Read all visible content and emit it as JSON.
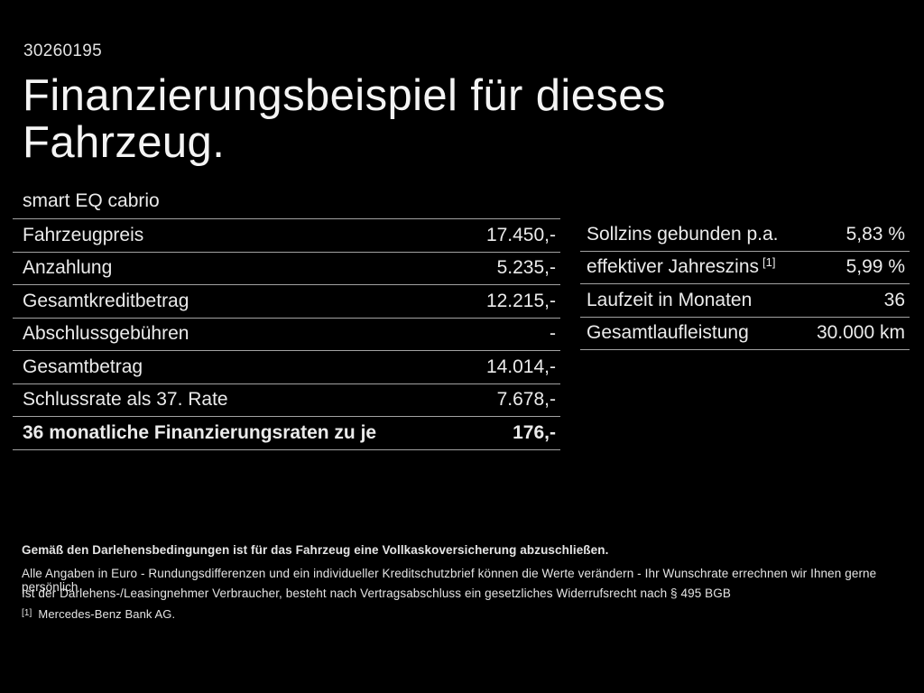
{
  "page": {
    "background_color": "#000000",
    "text_color": "#ececec",
    "divider_color": "#a2a2a2"
  },
  "header": {
    "document_id": "30260195",
    "title_line1": "Finanzierungsbeispiel für dieses",
    "title_line2": "Fahrzeug.",
    "vehicle_model": "smart EQ cabrio"
  },
  "financing_table": {
    "rows": [
      {
        "label": "Fahrzeugpreis",
        "value": "17.450,-"
      },
      {
        "label": "Anzahlung",
        "value": "5.235,-"
      },
      {
        "label": "Gesamtkreditbetrag",
        "value": "12.215,-"
      },
      {
        "label": "Abschlussgebühren",
        "value": "-"
      },
      {
        "label": "Gesamtbetrag",
        "value": "14.014,-"
      },
      {
        "label": "Schlussrate als 37. Rate",
        "value": "7.678,-"
      },
      {
        "label": "36 monatliche Finanzierungsraten zu je",
        "value": "176,-"
      }
    ]
  },
  "conditions_table": {
    "rows": [
      {
        "label": "Sollzins gebunden p.a.",
        "sup": "",
        "value": "5,83 %"
      },
      {
        "label": "effektiver Jahreszins",
        "sup": "[1]",
        "value": "5,99 %"
      },
      {
        "label": "Laufzeit in Monaten",
        "sup": "",
        "value": "36"
      },
      {
        "label": "Gesamtlaufleistung",
        "sup": "",
        "value": "30.000 km"
      }
    ]
  },
  "footnotes": {
    "insurance_note": "Gemäß den Darlehensbedingungen ist für das Fahrzeug eine Vollkaskoversicherung abzuschließen.",
    "values_note": "Alle Angaben in Euro - Rundungsdifferenzen und ein individueller Kreditschutzbrief können die Werte verändern - Ihr Wunschrate errechnen wir Ihnen gerne persönlich",
    "withdrawal_note": "Ist der Darlehens-/Leasingnehmer Verbraucher, besteht nach Vertragsabschluss ein gesetzliches Widerrufsrecht nach § 495 BGB",
    "bank_marker": "[1]",
    "bank_note": "Mercedes-Benz Bank AG."
  }
}
